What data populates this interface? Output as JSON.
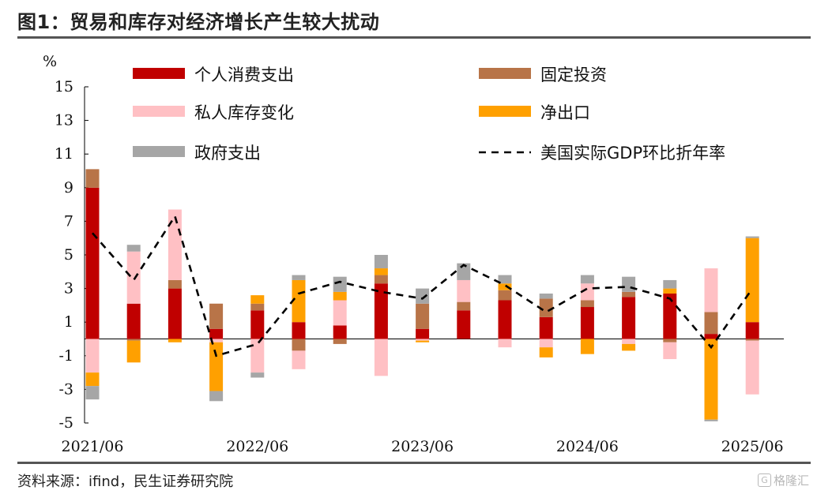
{
  "title": "图1：贸易和库存对经济增长产生较大扰动",
  "source": "资料来源：ifind，民生证券研究院",
  "watermark": "格隆汇",
  "chart_data": {
    "type": "bar",
    "stacked": true,
    "yunit": "%",
    "ylim": [
      -5,
      15
    ],
    "yticks": [
      -5,
      -3,
      -1,
      1,
      3,
      5,
      7,
      9,
      11,
      13,
      15
    ],
    "xtick_labels": [
      "2021/06",
      "2022/06",
      "2023/06",
      "2024/06",
      "2025/06"
    ],
    "xtick_positions": [
      0,
      4,
      8,
      12,
      16
    ],
    "categories": [
      "2021Q2",
      "2021Q3",
      "2021Q4",
      "2022Q1",
      "2022Q2",
      "2022Q3",
      "2022Q4",
      "2023Q1",
      "2023Q2",
      "2023Q3",
      "2023Q4",
      "2024Q1",
      "2024Q2",
      "2024Q3",
      "2024Q4",
      "2025Q1",
      "2025Q2"
    ],
    "series": [
      {
        "name": "个人消费支出",
        "color": "#c00000",
        "values": [
          9.0,
          2.1,
          3.0,
          0.6,
          1.7,
          1.0,
          0.8,
          3.3,
          0.6,
          1.7,
          2.3,
          1.3,
          1.9,
          2.5,
          2.7,
          0.3,
          1.0
        ]
      },
      {
        "name": "固定投资",
        "color": "#b87448",
        "values": [
          1.1,
          -0.1,
          0.5,
          1.5,
          0.4,
          -0.7,
          -0.3,
          0.5,
          1.5,
          0.5,
          0.6,
          1.1,
          0.4,
          0.3,
          -0.2,
          1.3,
          -0.1
        ]
      },
      {
        "name": "私人库存变化",
        "color": "#ffc0c4",
        "values": [
          -2.0,
          3.1,
          4.2,
          -0.2,
          -2.0,
          -1.1,
          1.5,
          -2.2,
          -0.1,
          1.3,
          -0.5,
          -0.5,
          1.0,
          -0.3,
          -1.0,
          2.6,
          -3.2
        ]
      },
      {
        "name": "净出口",
        "color": "#ffa000",
        "values": [
          -0.8,
          -1.3,
          -0.2,
          -2.9,
          0.5,
          2.5,
          0.5,
          0.4,
          -0.1,
          0.0,
          0.4,
          -0.6,
          -0.9,
          -0.4,
          0.3,
          -4.8,
          5.0
        ]
      },
      {
        "name": "政府支出",
        "color": "#a6a6a6",
        "values": [
          -0.8,
          0.4,
          0.0,
          -0.6,
          -0.3,
          0.3,
          0.9,
          0.8,
          0.9,
          1.0,
          0.5,
          0.3,
          0.5,
          0.9,
          0.5,
          -0.1,
          0.1
        ]
      }
    ],
    "line": {
      "name": "美国实际GDP环比折年率",
      "style": "dashed",
      "color": "#000000",
      "values": [
        6.3,
        3.5,
        7.3,
        -1.0,
        -0.3,
        2.7,
        3.4,
        2.8,
        2.4,
        4.4,
        3.2,
        1.6,
        3.0,
        3.1,
        2.4,
        -0.5,
        3.0
      ]
    },
    "legend_order": [
      "个人消费支出",
      "固定投资",
      "私人库存变化",
      "净出口",
      "政府支出",
      "美国实际GDP环比折年率"
    ]
  }
}
